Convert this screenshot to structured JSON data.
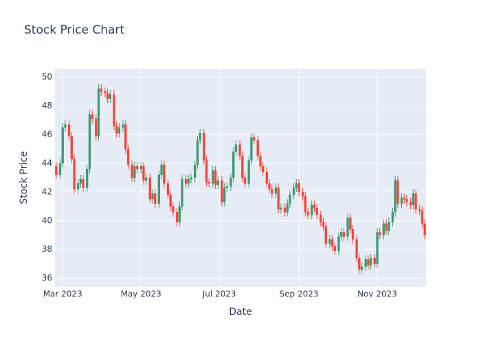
{
  "chart_data": {
    "type": "candlestick",
    "title": "Stock Price Chart",
    "x_label": "Date",
    "y_label": "Stock Price",
    "x": [
      "2023-02-24",
      "2023-02-27",
      "2023-03-01",
      "2023-03-03",
      "2023-03-06",
      "2023-03-08",
      "2023-03-10",
      "2023-03-13",
      "2023-03-15",
      "2023-03-17",
      "2023-03-20",
      "2023-03-22",
      "2023-03-24",
      "2023-03-27",
      "2023-03-29",
      "2023-03-31",
      "2023-04-03",
      "2023-04-05",
      "2023-04-07",
      "2023-04-10",
      "2023-04-12",
      "2023-04-14",
      "2023-04-17",
      "2023-04-19",
      "2023-04-21",
      "2023-04-24",
      "2023-04-26",
      "2023-04-28",
      "2023-05-01",
      "2023-05-03",
      "2023-05-05",
      "2023-05-08",
      "2023-05-10",
      "2023-05-12",
      "2023-05-15",
      "2023-05-17",
      "2023-05-19",
      "2023-05-22",
      "2023-05-24",
      "2023-05-26",
      "2023-05-29",
      "2023-05-31",
      "2023-06-02",
      "2023-06-05",
      "2023-06-07",
      "2023-06-09",
      "2023-06-12",
      "2023-06-14",
      "2023-06-16",
      "2023-06-19",
      "2023-06-21",
      "2023-06-23",
      "2023-06-26",
      "2023-06-28",
      "2023-06-30",
      "2023-07-03",
      "2023-07-05",
      "2023-07-07",
      "2023-07-10",
      "2023-07-12",
      "2023-07-14",
      "2023-07-17",
      "2023-07-19",
      "2023-07-21",
      "2023-07-24",
      "2023-07-26",
      "2023-07-28",
      "2023-07-31",
      "2023-08-02",
      "2023-08-04",
      "2023-08-07",
      "2023-08-09",
      "2023-08-11",
      "2023-08-14",
      "2023-08-16",
      "2023-08-18",
      "2023-08-21",
      "2023-08-23",
      "2023-08-25",
      "2023-08-28",
      "2023-08-30",
      "2023-09-01",
      "2023-09-04",
      "2023-09-06",
      "2023-09-08",
      "2023-09-11",
      "2023-09-13",
      "2023-09-15",
      "2023-09-18",
      "2023-09-20",
      "2023-09-22",
      "2023-09-25",
      "2023-09-27",
      "2023-09-29",
      "2023-10-02",
      "2023-10-04",
      "2023-10-06",
      "2023-10-09",
      "2023-10-11",
      "2023-10-13",
      "2023-10-16",
      "2023-10-18",
      "2023-10-20",
      "2023-10-23",
      "2023-10-25",
      "2023-10-27",
      "2023-10-30",
      "2023-11-01",
      "2023-11-03",
      "2023-11-06",
      "2023-11-08",
      "2023-11-10",
      "2023-11-13",
      "2023-11-15",
      "2023-11-17",
      "2023-11-20",
      "2023-11-22",
      "2023-11-24",
      "2023-11-27",
      "2023-11-29",
      "2023-12-01",
      "2023-12-04",
      "2023-12-06",
      "2023-12-08"
    ],
    "open": [
      43.8,
      43.2,
      44.0,
      46.5,
      46.7,
      45.9,
      44.3,
      42.2,
      42.6,
      42.9,
      42.3,
      43.6,
      47.4,
      47.1,
      45.9,
      49.2,
      49.0,
      48.9,
      48.5,
      48.8,
      46.6,
      46.1,
      46.5,
      46.7,
      45.0,
      43.9,
      43.0,
      43.8,
      43.6,
      43.8,
      42.8,
      43.0,
      41.5,
      41.9,
      41.2,
      43.2,
      43.9,
      42.6,
      41.8,
      41.0,
      40.6,
      39.9,
      41.0,
      42.9,
      42.6,
      42.9,
      43.0,
      43.9,
      45.6,
      46.1,
      44.2,
      42.7,
      42.6,
      43.5,
      42.5,
      42.8,
      41.3,
      42.3,
      42.4,
      43.0,
      44.8,
      45.3,
      44.5,
      43.0,
      42.6,
      44.2,
      45.8,
      45.6,
      44.5,
      43.8,
      43.4,
      42.6,
      42.2,
      41.9,
      42.3,
      40.8,
      40.9,
      40.6,
      41.2,
      41.8,
      42.3,
      42.6,
      42.0,
      41.7,
      40.6,
      40.4,
      41.1,
      40.9,
      40.4,
      39.9,
      39.6,
      38.4,
      38.7,
      38.2,
      37.9,
      38.9,
      39.2,
      38.9,
      40.2,
      39.4,
      38.7,
      37.4,
      36.6,
      36.8,
      37.3,
      36.9,
      37.4,
      37.0,
      39.2,
      39.0,
      39.8,
      39.3,
      39.9,
      40.6,
      42.8,
      41.2,
      41.6,
      41.5,
      41.3,
      41.1,
      41.9,
      40.8,
      40.7,
      39.8
    ],
    "high": [
      44.1,
      44.3,
      46.8,
      47.0,
      47.0,
      46.2,
      44.6,
      42.9,
      43.2,
      43.2,
      43.9,
      47.7,
      47.7,
      47.4,
      49.5,
      49.5,
      49.3,
      49.2,
      49.1,
      49.1,
      46.9,
      46.8,
      47.0,
      47.0,
      45.3,
      44.2,
      44.1,
      44.1,
      44.1,
      44.1,
      43.3,
      43.3,
      42.2,
      42.2,
      43.5,
      44.2,
      44.2,
      42.9,
      42.1,
      41.3,
      40.9,
      41.3,
      43.2,
      43.2,
      43.2,
      43.3,
      44.2,
      45.9,
      46.4,
      46.4,
      44.5,
      43.0,
      43.8,
      43.8,
      43.1,
      43.1,
      42.6,
      42.7,
      43.3,
      45.1,
      45.6,
      45.6,
      44.8,
      43.3,
      44.5,
      46.1,
      46.1,
      45.9,
      44.8,
      44.1,
      43.7,
      42.9,
      42.5,
      42.6,
      42.6,
      41.2,
      41.2,
      41.5,
      42.1,
      42.6,
      42.9,
      42.9,
      42.3,
      42.0,
      40.9,
      41.4,
      41.4,
      41.2,
      40.7,
      40.2,
      39.9,
      39.0,
      39.0,
      38.5,
      39.2,
      39.5,
      39.5,
      40.5,
      40.5,
      39.7,
      39.0,
      37.7,
      37.1,
      37.6,
      37.6,
      37.7,
      37.7,
      39.5,
      39.5,
      40.1,
      40.1,
      40.2,
      40.9,
      43.1,
      43.1,
      41.9,
      41.9,
      41.8,
      41.6,
      42.2,
      42.2,
      41.1,
      41.0,
      40.1
    ],
    "low": [
      42.9,
      42.9,
      43.7,
      46.2,
      45.6,
      44.0,
      41.9,
      41.9,
      42.3,
      42.0,
      42.0,
      43.3,
      46.8,
      45.6,
      45.6,
      48.7,
      48.6,
      48.2,
      48.2,
      46.3,
      45.8,
      45.8,
      46.2,
      44.7,
      43.6,
      42.7,
      42.7,
      43.3,
      43.3,
      42.5,
      42.5,
      41.2,
      41.2,
      40.9,
      40.9,
      42.9,
      42.3,
      41.5,
      40.7,
      40.3,
      39.6,
      39.6,
      40.7,
      42.3,
      42.3,
      42.6,
      42.7,
      43.6,
      45.3,
      43.9,
      42.4,
      42.3,
      42.3,
      42.2,
      42.2,
      41.0,
      41.0,
      42.0,
      42.1,
      42.7,
      44.5,
      44.2,
      42.7,
      42.3,
      42.3,
      43.9,
      45.3,
      44.2,
      43.5,
      43.1,
      42.3,
      41.9,
      41.6,
      41.6,
      40.5,
      40.5,
      40.3,
      40.3,
      40.9,
      41.5,
      42.0,
      41.7,
      41.4,
      40.3,
      40.1,
      40.1,
      40.6,
      40.1,
      39.6,
      39.3,
      38.1,
      38.1,
      37.9,
      37.6,
      37.6,
      38.6,
      38.6,
      38.6,
      39.1,
      38.4,
      37.1,
      36.3,
      36.3,
      36.5,
      36.6,
      36.6,
      36.7,
      36.7,
      38.7,
      38.7,
      39.0,
      39.0,
      39.6,
      40.3,
      40.9,
      40.9,
      41.2,
      41.0,
      40.8,
      40.8,
      40.5,
      40.4,
      39.5,
      38.7
    ],
    "close": [
      43.2,
      44.0,
      46.5,
      46.7,
      45.9,
      44.3,
      42.2,
      42.6,
      42.9,
      42.3,
      43.6,
      47.4,
      47.1,
      45.9,
      49.2,
      49.0,
      48.9,
      48.5,
      48.8,
      46.6,
      46.1,
      46.5,
      46.7,
      45.0,
      43.9,
      43.0,
      43.8,
      43.6,
      43.8,
      42.8,
      43.0,
      41.5,
      41.9,
      41.2,
      43.2,
      43.9,
      42.6,
      41.8,
      41.0,
      40.6,
      39.9,
      41.0,
      42.9,
      42.6,
      42.9,
      43.0,
      43.9,
      45.6,
      46.1,
      44.2,
      42.7,
      42.6,
      43.5,
      42.5,
      42.8,
      41.3,
      42.3,
      42.4,
      43.0,
      44.8,
      45.3,
      44.5,
      43.0,
      42.6,
      44.2,
      45.8,
      45.6,
      44.5,
      43.8,
      43.4,
      42.6,
      42.2,
      41.9,
      42.3,
      40.8,
      40.9,
      40.6,
      41.2,
      41.8,
      42.3,
      42.6,
      42.0,
      41.7,
      40.6,
      40.4,
      41.1,
      40.9,
      40.4,
      39.9,
      39.6,
      38.4,
      38.7,
      38.2,
      37.9,
      38.9,
      39.2,
      38.9,
      40.2,
      39.4,
      38.7,
      37.4,
      36.6,
      36.8,
      37.3,
      36.9,
      37.4,
      37.0,
      39.2,
      39.0,
      39.8,
      39.3,
      39.9,
      40.6,
      42.8,
      41.2,
      41.6,
      41.5,
      41.3,
      41.1,
      41.9,
      40.8,
      40.7,
      39.8,
      39.0
    ],
    "increasing_color": "#3D9970",
    "decreasing_color": "#FF4136",
    "xlim": [
      "2023-02-23",
      "2023-12-09"
    ],
    "xticks": [
      {
        "value": "2023-03-01",
        "label": "Mar 2023"
      },
      {
        "value": "2023-05-01",
        "label": "May 2023"
      },
      {
        "value": "2023-07-01",
        "label": "Jul 2023"
      },
      {
        "value": "2023-09-01",
        "label": "Sep 2023"
      },
      {
        "value": "2023-11-01",
        "label": "Nov 2023"
      }
    ],
    "ylim": [
      35.4,
      50.6
    ],
    "yticks": [
      36,
      38,
      40,
      42,
      44,
      46,
      48,
      50
    ],
    "grid": true
  }
}
